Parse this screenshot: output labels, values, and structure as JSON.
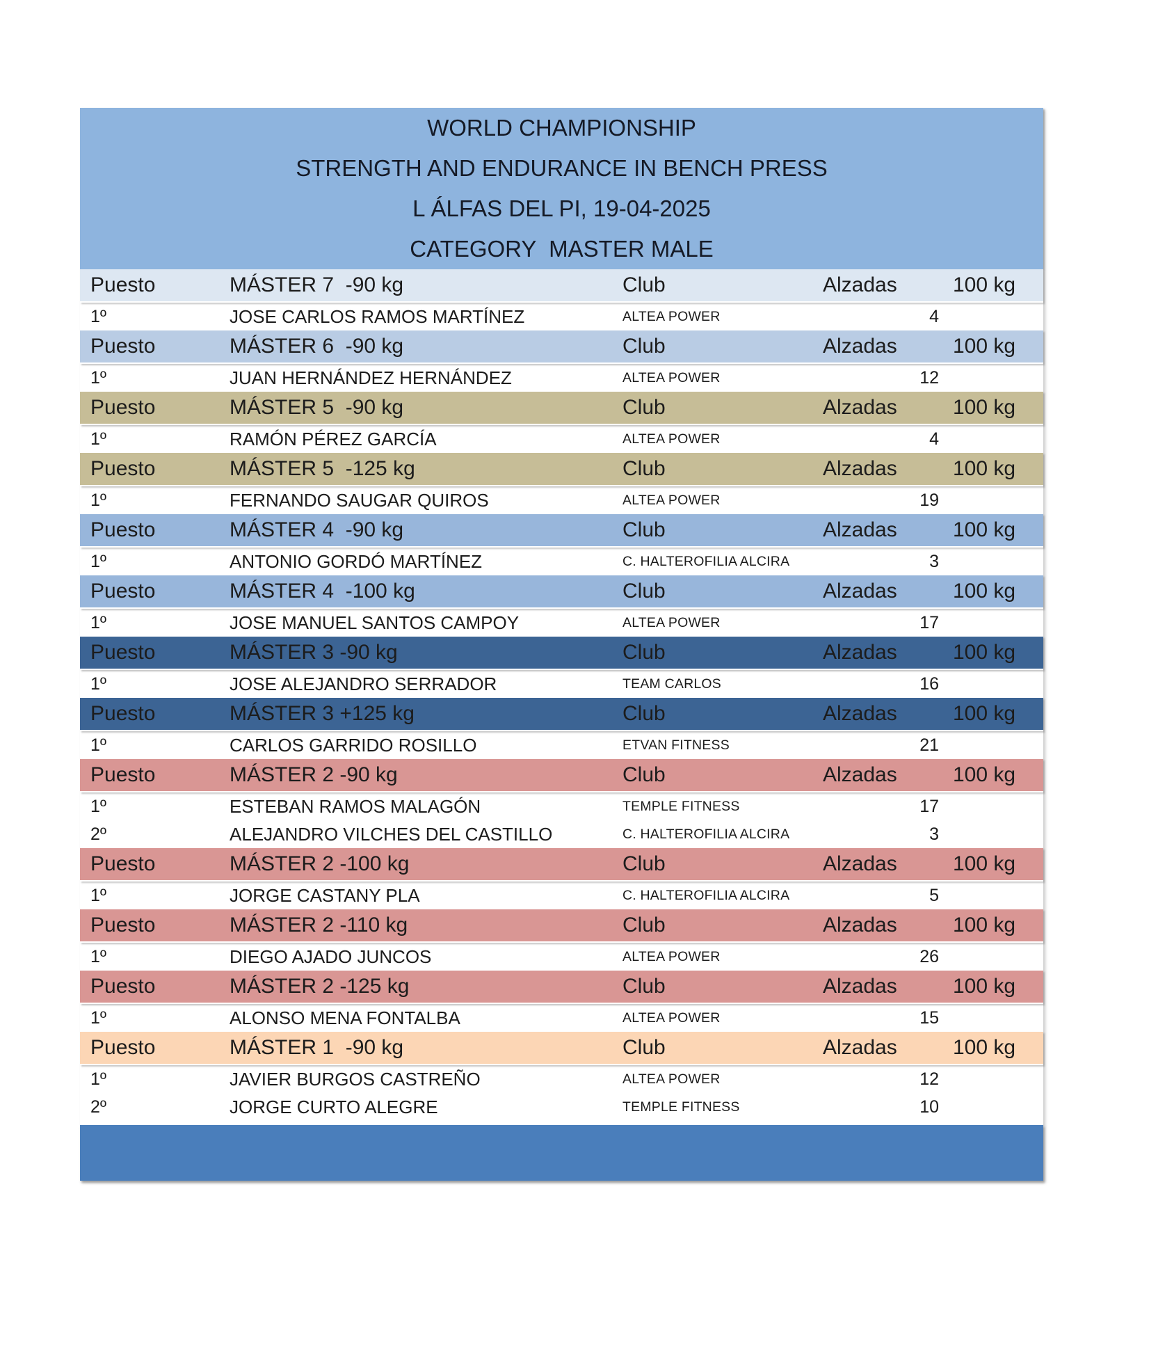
{
  "title": {
    "lines": [
      "WORLD CHAMPIONSHIP",
      "STRENGTH AND ENDURANCE IN BENCH PRESS",
      "L ÁLFAS DEL PI, 19-04-2025",
      "CATEGORY  MASTER MALE"
    ]
  },
  "columns": {
    "puesto": "Puesto",
    "club": "Club",
    "alzadas": "Alzadas",
    "weight": "100 kg"
  },
  "sections": [
    {
      "category": "MÁSTER 7  -90 kg",
      "theme": "blue-80",
      "rows": [
        {
          "puesto": "1º",
          "name": "JOSE CARLOS RAMOS MARTÍNEZ",
          "club": "ALTEA POWER",
          "alzadas": "4"
        }
      ]
    },
    {
      "category": "MÁSTER 6  -90 kg",
      "theme": "blue-60",
      "rows": [
        {
          "puesto": "1º",
          "name": "JUAN HERNÁNDEZ HERNÁNDEZ",
          "club": "ALTEA POWER",
          "alzadas": "12"
        }
      ]
    },
    {
      "category": "MÁSTER 5  -90 kg",
      "theme": "khaki",
      "rows": [
        {
          "puesto": "1º",
          "name": "RAMÓN PÉREZ GARCÍA",
          "club": "ALTEA POWER",
          "alzadas": "4"
        }
      ]
    },
    {
      "category": "MÁSTER 5  -125 kg",
      "theme": "khaki",
      "rows": [
        {
          "puesto": "1º",
          "name": "FERNANDO SAUGAR QUIROS",
          "club": "ALTEA POWER",
          "alzadas": "19"
        }
      ]
    },
    {
      "category": "MÁSTER 4  -90 kg",
      "theme": "blue-40",
      "rows": [
        {
          "puesto": "1º",
          "name": "ANTONIO GORDÓ MARTÍNEZ",
          "club": "C. HALTEROFILIA ALCIRA",
          "alzadas": "3"
        }
      ]
    },
    {
      "category": "MÁSTER 4  -100 kg",
      "theme": "blue-40",
      "rows": [
        {
          "puesto": "1º",
          "name": "JOSE MANUEL SANTOS CAMPOY",
          "club": "ALTEA POWER",
          "alzadas": "17"
        }
      ]
    },
    {
      "category": "MÁSTER 3 -90 kg",
      "theme": "blue-dark",
      "rows": [
        {
          "puesto": "1º",
          "name": "JOSE ALEJANDRO SERRADOR",
          "club": "TEAM CARLOS",
          "alzadas": "16"
        }
      ]
    },
    {
      "category": "MÁSTER 3 +125 kg",
      "theme": "blue-dark",
      "rows": [
        {
          "puesto": "1º",
          "name": "CARLOS GARRIDO ROSILLO",
          "club": "ETVAN FITNESS",
          "alzadas": "21"
        }
      ]
    },
    {
      "category": "MÁSTER 2 -90 kg",
      "theme": "rose",
      "rows": [
        {
          "puesto": "1º",
          "name": "ESTEBAN RAMOS MALAGÓN",
          "club": "TEMPLE FITNESS",
          "alzadas": "17"
        },
        {
          "puesto": "2º",
          "name": "ALEJANDRO VILCHES DEL CASTILLO",
          "club": "C. HALTEROFILIA ALCIRA",
          "alzadas": "3"
        }
      ]
    },
    {
      "category": "MÁSTER 2 -100 kg",
      "theme": "rose",
      "rows": [
        {
          "puesto": "1º",
          "name": "JORGE CASTANY PLA",
          "club": "C. HALTEROFILIA ALCIRA",
          "alzadas": "5"
        }
      ]
    },
    {
      "category": "MÁSTER 2 -110 kg",
      "theme": "rose",
      "rows": [
        {
          "puesto": "1º",
          "name": "DIEGO AJADO JUNCOS",
          "club": "ALTEA POWER",
          "alzadas": "26"
        }
      ]
    },
    {
      "category": "MÁSTER 2 -125 kg",
      "theme": "rose",
      "rows": [
        {
          "puesto": "1º",
          "name": "ALONSO MENA FONTALBA",
          "club": "ALTEA POWER",
          "alzadas": "15"
        }
      ]
    },
    {
      "category": "MÁSTER 1  -90 kg",
      "theme": "peach",
      "rows": [
        {
          "puesto": "1º",
          "name": "JAVIER BURGOS CASTREÑO",
          "club": "ALTEA POWER",
          "alzadas": "12"
        },
        {
          "puesto": "2º",
          "name": "JORGE CURTO ALEGRE",
          "club": "TEMPLE FITNESS",
          "alzadas": "10"
        }
      ]
    }
  ],
  "colors": {
    "title_band": "#8eb4de",
    "section_blue_80": "#dde7f2",
    "section_blue_60": "#b9cce4",
    "section_khaki": "#c6bd97",
    "section_blue_40": "#98b6db",
    "section_blue_dark": "#3c6494",
    "section_rose": "#d99694",
    "section_peach": "#fcd6b5",
    "footer_band": "#4a7ebb",
    "text": "#1c1c1c"
  }
}
